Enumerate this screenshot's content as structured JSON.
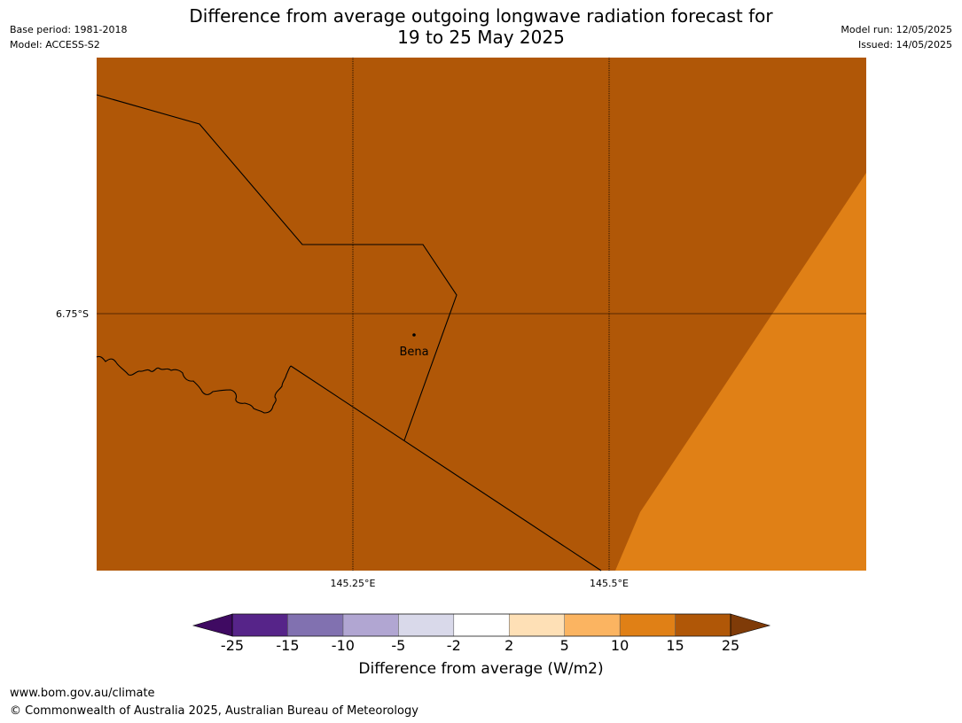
{
  "header": {
    "title_line1": "Difference from average outgoing longwave radiation forecast for",
    "title_line2": "19 to 25 May 2025",
    "base_period": "Base period: 1981-2018",
    "model": "Model: ACCESS-S2",
    "model_run": "Model run: 12/05/2025",
    "issued": "Issued: 14/05/2025"
  },
  "map": {
    "lat_label": "6.75°S",
    "lon_labels": [
      "145.25°E",
      "145.5°E"
    ],
    "place_label": "Bena",
    "colors": {
      "anomaly_15_25": "#b05707",
      "anomaly_10_15": "#e08016",
      "coast_line": "#000000"
    }
  },
  "colorbar": {
    "ticks": [
      "-25",
      "-15",
      "-10",
      "-5",
      "-2",
      "2",
      "5",
      "10",
      "15",
      "25"
    ],
    "colors": [
      "#3f0a62",
      "#562489",
      "#8171b0",
      "#b1a6d2",
      "#d9d9ea",
      "#ffffff",
      "#fee0b6",
      "#fbb461",
      "#e08016",
      "#b05707",
      "#7f3b08"
    ],
    "label": "Difference from average (W/m2)"
  },
  "footer": {
    "url": "www.bom.gov.au/climate",
    "copyright": "© Commonwealth of Australia 2025, Australian Bureau of Meteorology"
  }
}
